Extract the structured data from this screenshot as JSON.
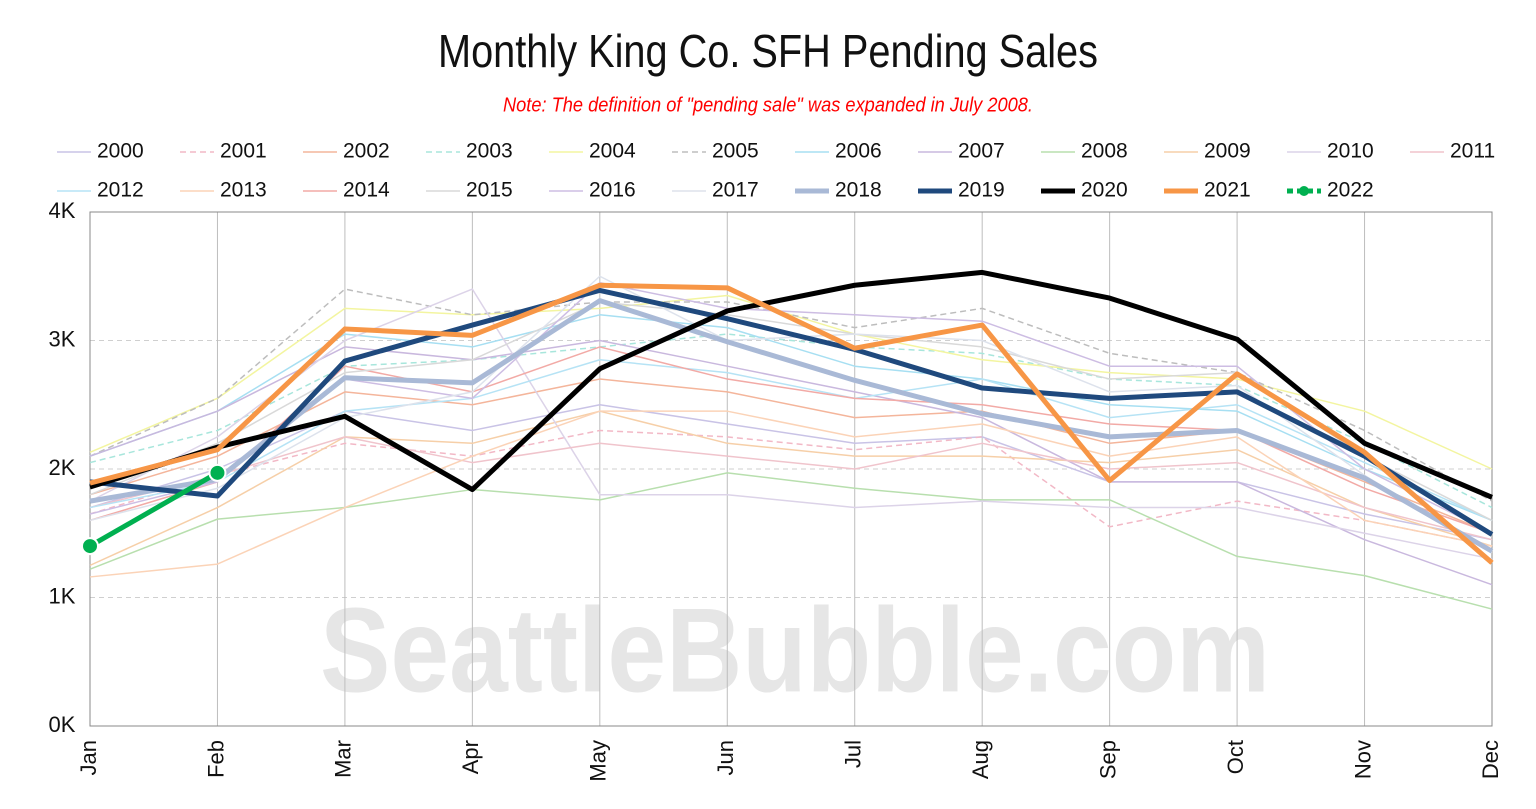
{
  "chart_data": {
    "type": "line",
    "title": "Monthly King Co. SFH Pending Sales",
    "subtitle": "Note: The definition of \"pending sale\" was expanded in July 2008.",
    "watermark": "SeattleBubble.com",
    "categories": [
      "Jan",
      "Feb",
      "Mar",
      "Apr",
      "May",
      "Jun",
      "Jul",
      "Aug",
      "Sep",
      "Oct",
      "Nov",
      "Dec"
    ],
    "ylim": [
      0,
      4000
    ],
    "yticks": [
      {
        "value": 0,
        "label": "0K"
      },
      {
        "value": 1000,
        "label": "1K"
      },
      {
        "value": 2000,
        "label": "2K"
      },
      {
        "value": 3000,
        "label": "3K"
      },
      {
        "value": 4000,
        "label": "4K"
      }
    ],
    "grid": true,
    "legend": "top",
    "series": [
      {
        "name": "2000",
        "color": "#c9c3e6",
        "line_width": 1.5,
        "values": [
          1700,
          2000,
          2450,
          2300,
          2500,
          2350,
          2200,
          2250,
          1900,
          1900,
          1650,
          1450
        ]
      },
      {
        "name": "2001",
        "color": "#f2b8c6",
        "line_width": 1.5,
        "dashed": true,
        "values": [
          1650,
          1950,
          2200,
          2100,
          2300,
          2250,
          2150,
          2250,
          1550,
          1750,
          1600,
          1400
        ]
      },
      {
        "name": "2002",
        "color": "#f4b59b",
        "line_width": 1.5,
        "values": [
          1800,
          2100,
          2600,
          2500,
          2700,
          2600,
          2400,
          2450,
          2200,
          2300,
          1900,
          1500
        ]
      },
      {
        "name": "2003",
        "color": "#a8e6dc",
        "line_width": 1.5,
        "dashed": true,
        "values": [
          2050,
          2300,
          2800,
          2850,
          2950,
          3050,
          2950,
          2900,
          2700,
          2650,
          2200,
          1700
        ]
      },
      {
        "name": "2004",
        "color": "#f3f5a0",
        "line_width": 1.5,
        "values": [
          2130,
          2550,
          3250,
          3200,
          3250,
          3350,
          3050,
          2850,
          2750,
          2700,
          2450,
          2000
        ]
      },
      {
        "name": "2005",
        "color": "#bdbdbd",
        "line_width": 1.5,
        "dashed": true,
        "values": [
          2100,
          2550,
          3400,
          3200,
          3300,
          3300,
          3100,
          3250,
          2900,
          2750,
          2300,
          1750
        ]
      },
      {
        "name": "2006",
        "color": "#a7dff2",
        "line_width": 1.5,
        "values": [
          2100,
          2450,
          3050,
          2950,
          3200,
          3100,
          2800,
          2700,
          2500,
          2450,
          2000,
          1600
        ]
      },
      {
        "name": "2007",
        "color": "#c9b8de",
        "line_width": 1.5,
        "values": [
          2100,
          2450,
          2950,
          2850,
          3000,
          2800,
          2600,
          2400,
          1900,
          1900,
          1450,
          1100
        ]
      },
      {
        "name": "2008",
        "color": "#b8dfae",
        "line_width": 1.5,
        "values": [
          1220,
          1610,
          1700,
          1840,
          1760,
          1970,
          1850,
          1760,
          1760,
          1320,
          1170,
          910
        ]
      },
      {
        "name": "2009",
        "color": "#f6cfa8",
        "line_width": 1.5,
        "values": [
          1250,
          1700,
          2250,
          2200,
          2450,
          2200,
          2100,
          2100,
          2050,
          2150,
          1700,
          1400
        ]
      },
      {
        "name": "2010",
        "color": "#dcd3e8",
        "line_width": 1.5,
        "values": [
          1750,
          2250,
          3000,
          3400,
          1800,
          1800,
          1700,
          1750,
          1700,
          1700,
          1500,
          1300
        ]
      },
      {
        "name": "2011",
        "color": "#f0c4cc",
        "line_width": 1.5,
        "values": [
          1700,
          1950,
          2250,
          2050,
          2200,
          2100,
          2000,
          2200,
          2000,
          2050,
          1700,
          1450
        ]
      },
      {
        "name": "2012",
        "color": "#b6e3f5",
        "line_width": 1.5,
        "values": [
          1700,
          1900,
          2450,
          2550,
          2850,
          2750,
          2550,
          2700,
          2400,
          2500,
          2050,
          1600
        ]
      },
      {
        "name": "2013",
        "color": "#fbd3b7",
        "line_width": 1.5,
        "values": [
          1160,
          1260,
          1700,
          2100,
          2450,
          2450,
          2250,
          2350,
          2100,
          2250,
          1600,
          1400
        ]
      },
      {
        "name": "2014",
        "color": "#f2aaa6",
        "line_width": 1.5,
        "values": [
          1600,
          1900,
          2800,
          2600,
          2950,
          2700,
          2550,
          2500,
          2350,
          2300,
          1850,
          1500
        ]
      },
      {
        "name": "2015",
        "color": "#d9d9d9",
        "line_width": 1.5,
        "values": [
          1800,
          2200,
          2750,
          2850,
          3300,
          3200,
          3050,
          2950,
          2700,
          2750,
          2100,
          1600
        ]
      },
      {
        "name": "2016",
        "color": "#cdbde3",
        "line_width": 1.5,
        "values": [
          1650,
          1900,
          2700,
          2550,
          3450,
          3250,
          3200,
          3150,
          2800,
          2800,
          2000,
          1500
        ]
      },
      {
        "name": "2017",
        "color": "#dde2ec",
        "line_width": 1.5,
        "values": [
          1600,
          1850,
          2400,
          2600,
          3500,
          3000,
          3050,
          3000,
          2600,
          2650,
          1950,
          1350
        ]
      },
      {
        "name": "2018",
        "color": "#a9b9d6",
        "line_width": 5,
        "values": [
          1750,
          1920,
          2710,
          2670,
          3310,
          2990,
          2690,
          2430,
          2250,
          2300,
          1930,
          1360
        ]
      },
      {
        "name": "2019",
        "color": "#1f497d",
        "line_width": 5,
        "values": [
          1900,
          1790,
          2840,
          3120,
          3390,
          3170,
          2930,
          2630,
          2550,
          2600,
          2100,
          1490
        ]
      },
      {
        "name": "2020",
        "color": "#000000",
        "line_width": 5,
        "values": [
          1860,
          2170,
          2410,
          1840,
          2780,
          3230,
          3430,
          3530,
          3330,
          3010,
          2200,
          1780
        ]
      },
      {
        "name": "2021",
        "color": "#f79646",
        "line_width": 5,
        "values": [
          1890,
          2150,
          3090,
          3040,
          3430,
          3410,
          2940,
          3120,
          1910,
          2740,
          2130,
          1270
        ]
      },
      {
        "name": "2022",
        "color": "#00b050",
        "line_width": 5,
        "markers": true,
        "legend_dashed": true,
        "values": [
          1400,
          1970,
          null,
          null,
          null,
          null,
          null,
          null,
          null,
          null,
          null,
          null
        ]
      }
    ]
  }
}
